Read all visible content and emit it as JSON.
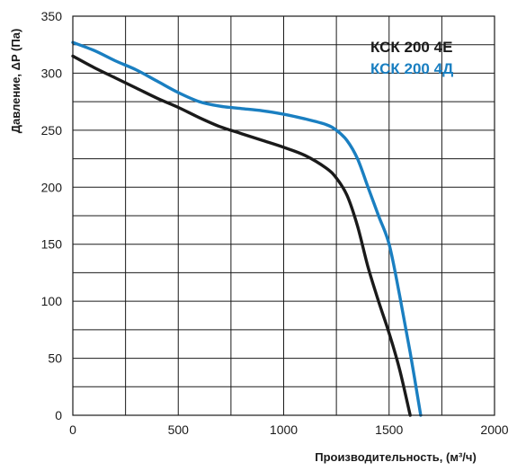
{
  "chart_data": {
    "type": "line",
    "xlabel": "Производительность, (м³/ч)",
    "ylabel": "Давление, ΔP (Па)",
    "xlim": [
      0,
      2000
    ],
    "ylim": [
      0,
      350
    ],
    "xticks": [
      0,
      500,
      1000,
      1500,
      2000
    ],
    "yticks": [
      0,
      50,
      100,
      150,
      200,
      250,
      300,
      350
    ],
    "grid": true,
    "legend_position": "top-right",
    "series": [
      {
        "name": "КСК 200 4Е",
        "color": "#1a1a1a",
        "x": [
          0,
          100,
          200,
          300,
          400,
          500,
          600,
          700,
          800,
          900,
          1000,
          1100,
          1200,
          1250,
          1300,
          1350,
          1400,
          1450,
          1500,
          1550,
          1600
        ],
        "y": [
          315,
          305,
          296,
          287,
          278,
          270,
          261,
          253,
          247,
          241,
          235,
          228,
          217,
          208,
          193,
          166,
          130,
          100,
          72,
          40,
          0
        ]
      },
      {
        "name": "КСК 200 4Д",
        "color": "#1a7fc1",
        "x": [
          0,
          100,
          200,
          300,
          400,
          500,
          600,
          700,
          800,
          900,
          1000,
          1100,
          1200,
          1250,
          1300,
          1350,
          1400,
          1450,
          1500,
          1550,
          1600,
          1650
        ],
        "y": [
          327,
          320,
          311,
          303,
          293,
          283,
          275,
          271,
          269,
          267,
          264,
          260,
          255,
          250,
          241,
          225,
          200,
          175,
          150,
          105,
          55,
          0
        ]
      }
    ]
  }
}
